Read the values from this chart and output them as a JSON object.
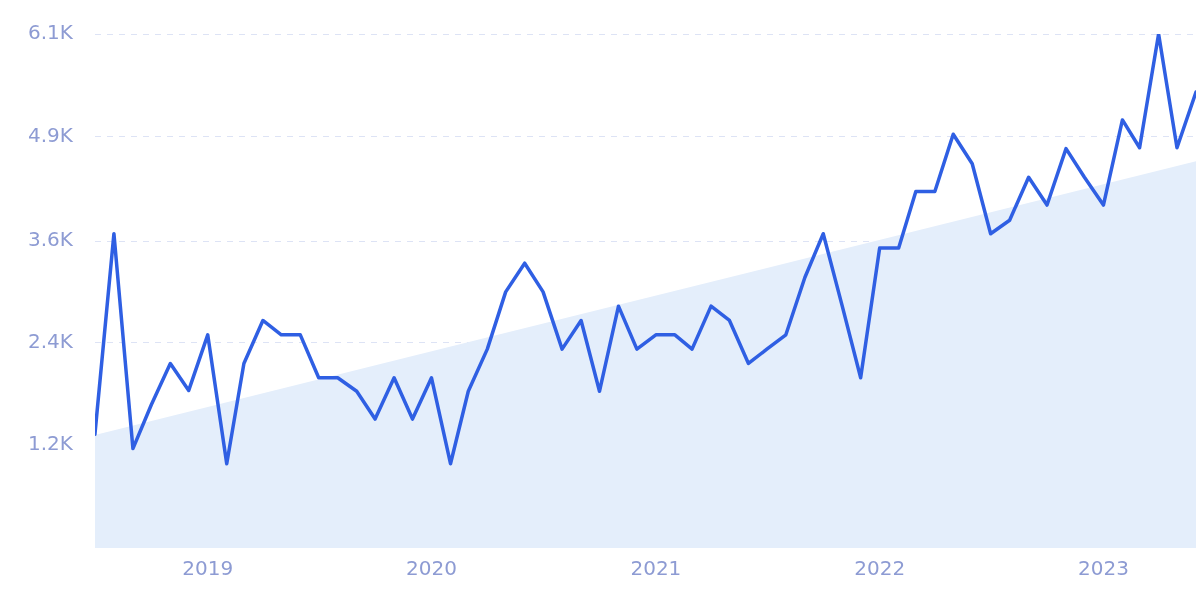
{
  "chart_data": {
    "type": "line",
    "x": [
      "2018-07",
      "2018-08",
      "2018-09",
      "2018-10",
      "2018-11",
      "2018-12",
      "2019-01",
      "2019-02",
      "2019-03",
      "2019-04",
      "2019-05",
      "2019-06",
      "2019-07",
      "2019-08",
      "2019-09",
      "2019-10",
      "2019-11",
      "2019-12",
      "2020-01",
      "2020-02",
      "2020-03",
      "2020-04",
      "2020-05",
      "2020-06",
      "2020-07",
      "2020-08",
      "2020-09",
      "2020-10",
      "2020-11",
      "2020-12",
      "2021-01",
      "2021-02",
      "2021-03",
      "2021-04",
      "2021-05",
      "2021-06",
      "2021-07",
      "2021-08",
      "2021-09",
      "2021-10",
      "2021-11",
      "2021-12",
      "2022-01",
      "2022-02",
      "2022-03",
      "2022-04",
      "2022-05",
      "2022-06",
      "2022-07",
      "2022-08",
      "2022-09",
      "2022-10",
      "2022-11",
      "2022-12",
      "2023-01",
      "2023-02",
      "2023-03",
      "2023-04",
      "2023-05",
      "2023-06"
    ],
    "series": [
      {
        "color": "#2f5fe3",
        "values": [
          1350,
          3730,
          1180,
          1700,
          2190,
          1870,
          2530,
          1000,
          2190,
          2700,
          2530,
          2530,
          2020,
          2020,
          1860,
          1530,
          2020,
          1530,
          2020,
          1000,
          1860,
          2360,
          3040,
          3380,
          3040,
          2360,
          2700,
          1860,
          2870,
          2360,
          2530,
          2530,
          2360,
          2870,
          2700,
          2190,
          2360,
          2530,
          3210,
          3730,
          2870,
          2020,
          3560,
          3560,
          4230,
          4230,
          4910,
          4560,
          3730,
          3890,
          4400,
          4070,
          4740,
          4400,
          4070,
          5080,
          4750,
          6100,
          4750,
          5410
        ]
      },
      {
        "type": "area",
        "color": "#e4eefb",
        "x": [
          "2018-07",
          "2023-06"
        ],
        "values": [
          1340,
          4590
        ]
      }
    ],
    "xlim": [
      "2018-07",
      "2023-06"
    ],
    "xticks": [
      "2019",
      "2020",
      "2021",
      "2022",
      "2023"
    ],
    "ylim": [
      0,
      6100
    ],
    "yticks": [
      {
        "value": 1220,
        "label": "1.2K"
      },
      {
        "value": 2440,
        "label": "2.4K"
      },
      {
        "value": 3640,
        "label": "3.6K"
      },
      {
        "value": 4880,
        "label": "4.9K"
      },
      {
        "value": 6100,
        "label": "6.1K"
      }
    ],
    "grid": "y",
    "legend": false,
    "marker": "none",
    "line_style": "solid"
  }
}
